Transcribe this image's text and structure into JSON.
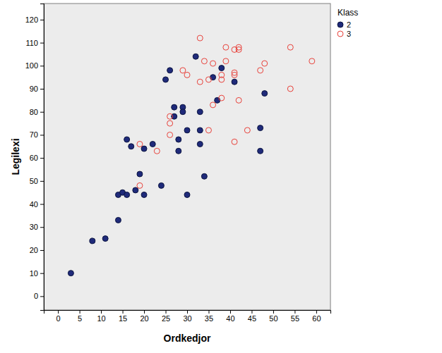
{
  "chart_data": {
    "type": "scatter",
    "x_label": "Ordkedjor",
    "y_label": "Legilexi",
    "legend_title": "Klass",
    "legend": "right",
    "xlim": [
      -3.3,
      63.3
    ],
    "ylim": [
      -6,
      127
    ],
    "xticks": [
      0,
      5,
      10,
      15,
      20,
      25,
      30,
      35,
      40,
      45,
      50,
      55,
      60
    ],
    "yticks": [
      0,
      10,
      20,
      30,
      40,
      50,
      60,
      70,
      80,
      90,
      100,
      110,
      120
    ],
    "series": [
      {
        "name": "2",
        "color": "#1f2a7a",
        "marker": "filled",
        "x": [
          3,
          8,
          11,
          14,
          14,
          15,
          16,
          16,
          17,
          18,
          19,
          20,
          20,
          22,
          24,
          25,
          26,
          27,
          27,
          28,
          28,
          29,
          29,
          30,
          30,
          32,
          33,
          33,
          33,
          34,
          36,
          37,
          38,
          41,
          47,
          47,
          48
        ],
        "values": [
          10,
          24,
          25,
          33,
          44,
          45,
          44,
          68,
          65,
          46,
          53,
          44,
          64,
          66,
          48,
          94,
          98,
          82,
          78,
          68,
          63,
          82,
          80,
          72,
          44,
          104,
          80,
          72,
          66,
          52,
          95,
          85,
          99,
          93,
          73,
          63,
          88
        ]
      },
      {
        "name": "3",
        "color": "#e8413a",
        "marker": "open",
        "x": [
          19,
          19,
          23,
          26,
          26,
          26,
          29,
          30,
          33,
          33,
          34,
          35,
          35,
          36,
          36,
          38,
          38,
          38,
          39,
          39,
          41,
          41,
          41,
          41,
          42,
          42,
          42,
          44,
          47,
          48,
          54,
          54,
          59
        ],
        "values": [
          66,
          48,
          63,
          78,
          75,
          70,
          98,
          96,
          112,
          93,
          102,
          94,
          72,
          101,
          83,
          86,
          96,
          94,
          108,
          102,
          107,
          97,
          96,
          67,
          108,
          107,
          85,
          72,
          98,
          101,
          108,
          90,
          102
        ]
      }
    ]
  }
}
